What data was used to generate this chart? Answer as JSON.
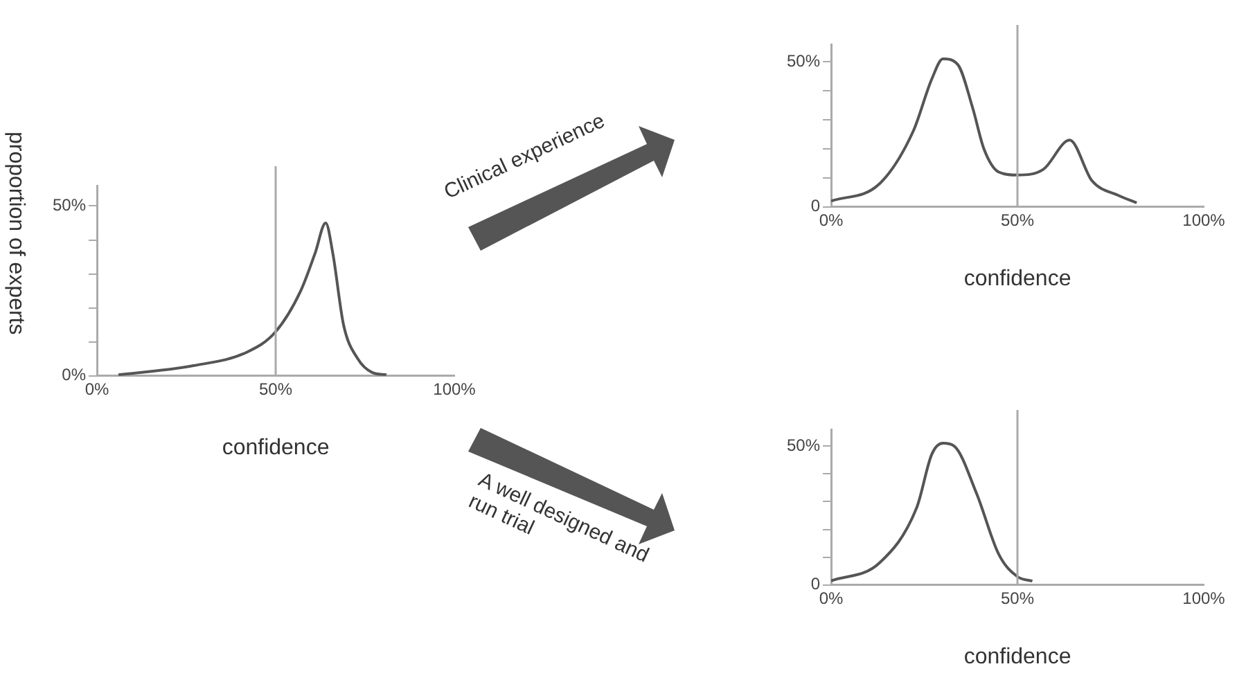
{
  "chart_data": [
    {
      "type": "line",
      "xlabel": "confidence",
      "ylabel": "proportion of experts",
      "color": "#555555",
      "x": [
        6,
        27,
        42,
        50,
        57,
        61,
        64,
        66,
        69,
        73,
        77,
        81
      ],
      "values": [
        0.3,
        3,
        7,
        13,
        25,
        36,
        45,
        36,
        15,
        5,
        1,
        0.3
      ],
      "xlim": [
        0,
        100
      ],
      "xticks": [
        {
          "value": 0,
          "label": "0%"
        },
        {
          "value": 50,
          "label": "50%"
        },
        {
          "value": 100,
          "label": "100%"
        }
      ],
      "ylim": [
        0,
        56
      ],
      "yticks": [
        {
          "value": 0,
          "label": "0%"
        },
        {
          "value": 10,
          "label": null
        },
        {
          "value": 20,
          "label": null
        },
        {
          "value": 30,
          "label": null
        },
        {
          "value": 40,
          "label": null
        },
        {
          "value": 50,
          "label": "50%"
        }
      ],
      "ref_lines": [
        {
          "axis": "x",
          "value": 50,
          "color": "#aaaaaa"
        }
      ]
    },
    {
      "type": "line",
      "xlabel": "confidence",
      "color": "#555555",
      "annotations": [
        "Clinical experience"
      ],
      "x": [
        0,
        13,
        22,
        27,
        30,
        34,
        38,
        41,
        45,
        50,
        57,
        64,
        70,
        77,
        82
      ],
      "values": [
        2,
        8,
        26,
        44,
        51,
        49,
        34,
        20,
        12,
        11,
        13,
        23,
        9,
        4,
        1.4
      ],
      "xlim": [
        0,
        100
      ],
      "xticks": [
        {
          "value": 0,
          "label": "0%"
        },
        {
          "value": 50,
          "label": "50%"
        },
        {
          "value": 100,
          "label": "100%"
        }
      ],
      "ylim": [
        0,
        56
      ],
      "yticks": [
        0,
        {
          "value": 10,
          "label": null
        },
        {
          "value": 20,
          "label": null
        },
        {
          "value": 30,
          "label": null
        },
        {
          "value": 40,
          "label": null
        },
        {
          "value": 50,
          "label": "50%"
        }
      ],
      "ref_lines": [
        {
          "axis": "x",
          "value": 50,
          "color": "#aaaaaa"
        }
      ]
    },
    {
      "type": "line",
      "xlabel": "confidence",
      "color": "#555555",
      "annotations": [
        "A well designed and run trial"
      ],
      "x": [
        0,
        13,
        23,
        27,
        30,
        33,
        39,
        45,
        50,
        54
      ],
      "values": [
        1.5,
        8,
        28,
        47,
        51,
        50,
        33,
        11,
        3,
        1.4
      ],
      "xlim": [
        0,
        100
      ],
      "xticks": [
        {
          "value": 0,
          "label": "0%"
        },
        {
          "value": 50,
          "label": "50%"
        },
        {
          "value": 100,
          "label": "100%"
        }
      ],
      "ylim": [
        0,
        56
      ],
      "yticks": [
        0,
        {
          "value": 10,
          "label": null
        },
        {
          "value": 20,
          "label": null
        },
        {
          "value": 30,
          "label": null
        },
        {
          "value": 40,
          "label": null
        },
        {
          "value": 50,
          "label": "50%"
        }
      ],
      "ref_lines": [
        {
          "axis": "x",
          "value": 50,
          "color": "#aaaaaa"
        }
      ]
    }
  ]
}
